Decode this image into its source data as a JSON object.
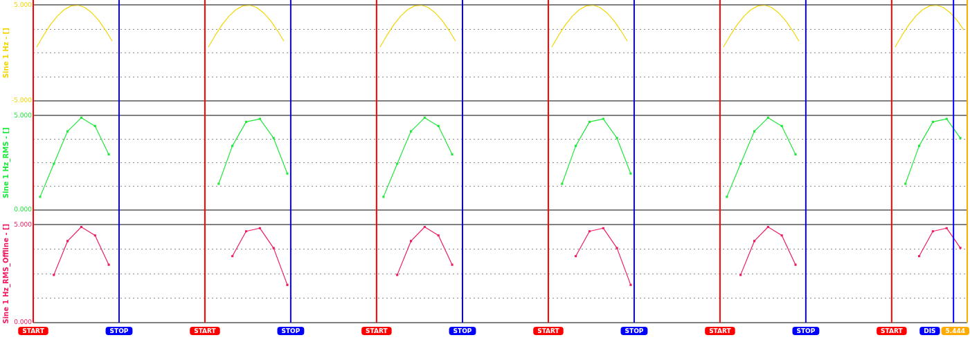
{
  "chart_data": [
    {
      "type": "line",
      "ylabel": "Sine 1 Hz - []",
      "categories": [
        null,
        null,
        null,
        null,
        null,
        null,
        null,
        null,
        null,
        null,
        null,
        null,
        null,
        null,
        null,
        null,
        null,
        null,
        null,
        null,
        null,
        null,
        null,
        null,
        null,
        null,
        null,
        null,
        null,
        null,
        null,
        null,
        null,
        null,
        null,
        null,
        null,
        null,
        null,
        null,
        null,
        null,
        null,
        null,
        null,
        null,
        null,
        null,
        null,
        null,
        null,
        null,
        null,
        null,
        null,
        null,
        null,
        null,
        null,
        null,
        null,
        null,
        null,
        null,
        null,
        null,
        null,
        null,
        null,
        null,
        null,
        null,
        null,
        null,
        null,
        null,
        null,
        null,
        null,
        null,
        null,
        null,
        null,
        null,
        null,
        null,
        null,
        null,
        null,
        null,
        null,
        null,
        null,
        null,
        null,
        null,
        null,
        null,
        null,
        null,
        null,
        null,
        null,
        null,
        null,
        null,
        null,
        null,
        null,
        null,
        null,
        null,
        null,
        null,
        null,
        null,
        null,
        null,
        null,
        null,
        null,
        null,
        null,
        null,
        null,
        null,
        null,
        null,
        null,
        null,
        null,
        null,
        null,
        null,
        null,
        null
      ],
      "ylim": [
        -5,
        5
      ],
      "yticks": [
        {
          "value": -5,
          "label": "-5.000"
        },
        {
          "value": -2.5,
          "label": null
        },
        {
          "value": 0,
          "label": null
        },
        {
          "value": 2.5,
          "label": null
        },
        {
          "value": 5,
          "label": "5.000"
        }
      ],
      "grid": "y",
      "tick_labels": "y",
      "marker": "none",
      "series": [
        {
          "color": "#f2d600",
          "values": [
            0.63,
            1.84,
            2.94,
            3.85,
            4.52,
            4.91,
            4.99,
            4.76,
            4.22,
            3.43,
            2.41,
            1.24,
            null,
            null,
            null,
            null,
            null,
            null,
            null,
            null,
            null,
            null,
            null,
            null,
            null,
            0.63,
            1.84,
            2.94,
            3.85,
            4.52,
            4.91,
            4.99,
            4.76,
            4.22,
            3.43,
            2.41,
            1.24,
            null,
            null,
            null,
            null,
            null,
            null,
            null,
            null,
            null,
            null,
            null,
            null,
            null,
            0.63,
            1.84,
            2.94,
            3.85,
            4.52,
            4.91,
            4.99,
            4.76,
            4.22,
            3.43,
            2.41,
            1.24,
            null,
            null,
            null,
            null,
            null,
            null,
            null,
            null,
            null,
            null,
            null,
            null,
            null,
            0.63,
            1.84,
            2.94,
            3.85,
            4.52,
            4.91,
            4.99,
            4.76,
            4.22,
            3.43,
            2.41,
            1.24,
            null,
            null,
            null,
            null,
            null,
            null,
            null,
            null,
            null,
            null,
            null,
            null,
            null,
            0.63,
            1.84,
            2.94,
            3.85,
            4.52,
            4.91,
            4.99,
            4.76,
            4.22,
            3.43,
            2.41,
            1.24,
            null,
            null,
            null,
            null,
            null,
            null,
            null,
            null,
            null,
            null,
            null,
            null,
            null,
            0.63,
            1.84,
            2.94,
            3.85,
            4.52,
            4.91,
            4.99,
            4.76,
            4.22,
            3.43,
            2.41
          ]
        }
      ],
      "legend": false
    },
    {
      "type": "line",
      "ylabel": "Sine 1 Hz_RMS - []",
      "categories": [
        null,
        null,
        null,
        null,
        null,
        null,
        null,
        null,
        null,
        null,
        null,
        null,
        null,
        null,
        null,
        null,
        null,
        null,
        null,
        null,
        null,
        null,
        null,
        null,
        null,
        null,
        null,
        null,
        null,
        null,
        null,
        null,
        null,
        null,
        null,
        null,
        null,
        null,
        null,
        null,
        null,
        null,
        null,
        null,
        null,
        null,
        null,
        null,
        null,
        null,
        null,
        null,
        null,
        null,
        null,
        null,
        null,
        null,
        null,
        null,
        null,
        null,
        null,
        null,
        null,
        null,
        null,
        null
      ],
      "ylim": [
        0,
        5
      ],
      "yticks": [
        {
          "value": 0,
          "label": "0.000"
        },
        {
          "value": 1.25,
          "label": null
        },
        {
          "value": 2.5,
          "label": null
        },
        {
          "value": 3.75,
          "label": null
        },
        {
          "value": 5,
          "label": "5.000"
        }
      ],
      "grid": "y",
      "tick_labels": "y",
      "marker": "square",
      "series": [
        {
          "color": "#1ee83c",
          "values": [
            0.7,
            2.45,
            4.17,
            4.89,
            4.45,
            2.95,
            null,
            null,
            null,
            null,
            null,
            null,
            null,
            1.39,
            3.4,
            4.67,
            4.83,
            3.81,
            1.93,
            null,
            null,
            null,
            null,
            null,
            null,
            0.7,
            2.45,
            4.17,
            4.89,
            4.45,
            2.95,
            null,
            null,
            null,
            null,
            null,
            null,
            null,
            1.39,
            3.4,
            4.67,
            4.83,
            3.81,
            1.93,
            null,
            null,
            null,
            null,
            null,
            null,
            0.7,
            2.45,
            4.17,
            4.89,
            4.45,
            2.95,
            null,
            null,
            null,
            null,
            null,
            null,
            null,
            1.39,
            3.4,
            4.67,
            4.83,
            3.81
          ]
        }
      ],
      "legend": false
    },
    {
      "type": "line",
      "ylabel": "Sine 1 Hz_RMS_Offline - []",
      "categories": [
        null,
        null,
        null,
        null,
        null,
        null,
        null,
        null,
        null,
        null,
        null,
        null,
        null,
        null,
        null,
        null,
        null,
        null,
        null,
        null,
        null,
        null,
        null,
        null,
        null,
        null,
        null,
        null,
        null,
        null,
        null,
        null,
        null,
        null,
        null,
        null,
        null,
        null,
        null,
        null,
        null,
        null,
        null,
        null,
        null,
        null,
        null,
        null,
        null,
        null,
        null,
        null,
        null,
        null,
        null,
        null,
        null,
        null,
        null,
        null,
        null,
        null,
        null,
        null,
        null,
        null,
        null,
        null
      ],
      "ylim": [
        0,
        5
      ],
      "yticks": [
        {
          "value": 0,
          "label": "0.000"
        },
        {
          "value": 1.25,
          "label": null
        },
        {
          "value": 2.5,
          "label": null
        },
        {
          "value": 3.75,
          "label": null
        },
        {
          "value": 5,
          "label": "5.000"
        }
      ],
      "grid": "y",
      "tick_labels": "y",
      "marker": "square",
      "series": [
        {
          "color": "#ee1b5e",
          "values": [
            null,
            2.44,
            4.17,
            4.89,
            4.46,
            2.96,
            null,
            null,
            null,
            null,
            null,
            null,
            null,
            null,
            3.4,
            4.67,
            4.83,
            3.81,
            1.93,
            null,
            null,
            null,
            null,
            null,
            null,
            null,
            2.44,
            4.17,
            4.89,
            4.46,
            2.96,
            null,
            null,
            null,
            null,
            null,
            null,
            null,
            null,
            3.4,
            4.67,
            4.83,
            3.81,
            1.93,
            null,
            null,
            null,
            null,
            null,
            null,
            null,
            2.44,
            4.17,
            4.89,
            4.46,
            2.96,
            null,
            null,
            null,
            null,
            null,
            null,
            null,
            null,
            3.4,
            4.67,
            4.83,
            3.82
          ]
        }
      ],
      "annotations": [
        "START",
        "STOP",
        "START",
        "STOP",
        "START",
        "STOP",
        "START",
        "STOP",
        "START",
        "STOP",
        "START",
        "DIS",
        "5.444"
      ],
      "legend": false
    }
  ]
}
